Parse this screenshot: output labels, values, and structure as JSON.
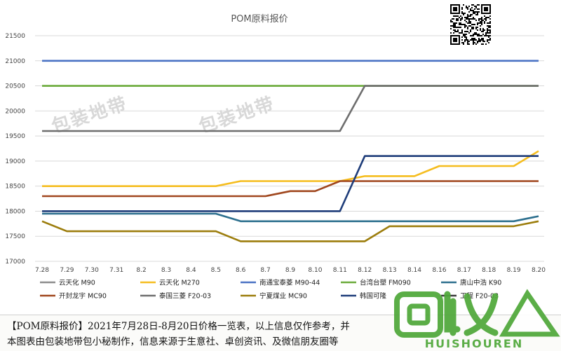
{
  "chart_data": {
    "type": "line",
    "title": "POM原料报价",
    "categories": [
      "7.28",
      "7.29",
      "7.30",
      "7.31",
      "8.2",
      "8.3",
      "8.4",
      "8.5",
      "8.6",
      "8.7",
      "8.9",
      "8.10",
      "8.11",
      "8.12",
      "8.13",
      "8.14",
      "8.16",
      "8.17",
      "8.18",
      "8.19",
      "8.20"
    ],
    "ylim": [
      17000,
      21500
    ],
    "yticks": [
      17000,
      17500,
      18000,
      18500,
      19000,
      19500,
      20000,
      20500,
      21000,
      21500
    ],
    "grid": true,
    "legend_position": "bottom",
    "series": [
      {
        "name": "云天化 M90",
        "color": "#8c8c8c",
        "values": [
          null,
          null,
          null,
          null,
          null,
          null,
          null,
          null,
          null,
          null,
          null,
          null,
          null,
          null,
          null,
          null,
          null,
          null,
          null,
          null,
          null
        ]
      },
      {
        "name": "云天化 M270",
        "color": "#f5bd1f",
        "values": [
          18500,
          18500,
          18500,
          18500,
          18500,
          18500,
          18500,
          18500,
          18600,
          18600,
          18600,
          18600,
          18600,
          18700,
          18700,
          18700,
          18900,
          18900,
          18900,
          18900,
          19200
        ]
      },
      {
        "name": "南通宝泰菱 M90-44",
        "color": "#4a72c4",
        "values": [
          21000,
          21000,
          21000,
          21000,
          21000,
          21000,
          21000,
          21000,
          21000,
          21000,
          21000,
          21000,
          21000,
          21000,
          21000,
          21000,
          21000,
          21000,
          21000,
          21000,
          21000
        ]
      },
      {
        "name": "台湾台塑 FM090",
        "color": "#6aaa3a",
        "values": [
          20500,
          20500,
          20500,
          20500,
          20500,
          20500,
          20500,
          20500,
          20500,
          20500,
          20500,
          20500,
          20500,
          20500,
          20500,
          20500,
          20500,
          20500,
          20500,
          20500,
          20500
        ]
      },
      {
        "name": "唐山中浩 K90",
        "color": "#2c6f8e",
        "values": [
          17950,
          17950,
          17950,
          17950,
          17950,
          17950,
          17950,
          17950,
          17800,
          17800,
          17800,
          17800,
          17800,
          17800,
          17800,
          17800,
          17800,
          17800,
          17800,
          17800,
          17900
        ]
      },
      {
        "name": "开封龙宇 MC90",
        "color": "#a0471e",
        "values": [
          18300,
          18300,
          18300,
          18300,
          18300,
          18300,
          18300,
          18300,
          18300,
          18300,
          18400,
          18400,
          18600,
          18600,
          18600,
          18600,
          18600,
          18600,
          18600,
          18600,
          18600
        ]
      },
      {
        "name": "泰国三菱 F20-03",
        "color": "#6e6e6e",
        "values": [
          19600,
          19600,
          19600,
          19600,
          19600,
          19600,
          19600,
          19600,
          19600,
          19600,
          19600,
          19600,
          19600,
          20500,
          20500,
          20500,
          20500,
          20500,
          20500,
          20500,
          20500
        ]
      },
      {
        "name": "宁夏煤业 MC90",
        "color": "#9c7d0c",
        "values": [
          17800,
          17600,
          17600,
          17600,
          17600,
          17600,
          17600,
          17600,
          17400,
          17400,
          17400,
          17400,
          17400,
          17400,
          17700,
          17700,
          17700,
          17700,
          17700,
          17700,
          17800
        ]
      },
      {
        "name": "韩国可隆",
        "color": "#1f3d7a",
        "values": [
          18000,
          18000,
          18000,
          18000,
          18000,
          18000,
          18000,
          18000,
          18000,
          18000,
          18000,
          18000,
          18000,
          19100,
          19100,
          19100,
          19100,
          19100,
          19100,
          19100,
          19100
        ]
      },
      {
        "name": "工程 F20-03",
        "color": "#3b3b3b",
        "hidden_marker": true,
        "values": [
          null,
          null,
          null,
          null,
          null,
          null,
          null,
          null,
          null,
          null,
          null,
          null,
          null,
          null,
          null,
          null,
          null,
          null,
          null,
          null,
          null
        ]
      }
    ]
  },
  "watermark": "包装地带",
  "caption": {
    "line1": "【POM原料报价】2021年7月28日-8月20日价格一览表，以上信息仅作参考，并",
    "line2": "本图表由包装地带包小秘制作，信息来源于生意社、卓创资讯、及微信朋友圈等"
  },
  "logo": {
    "name": "回收",
    "sub": "HUISHOUREN",
    "color": "#4fa83a"
  }
}
